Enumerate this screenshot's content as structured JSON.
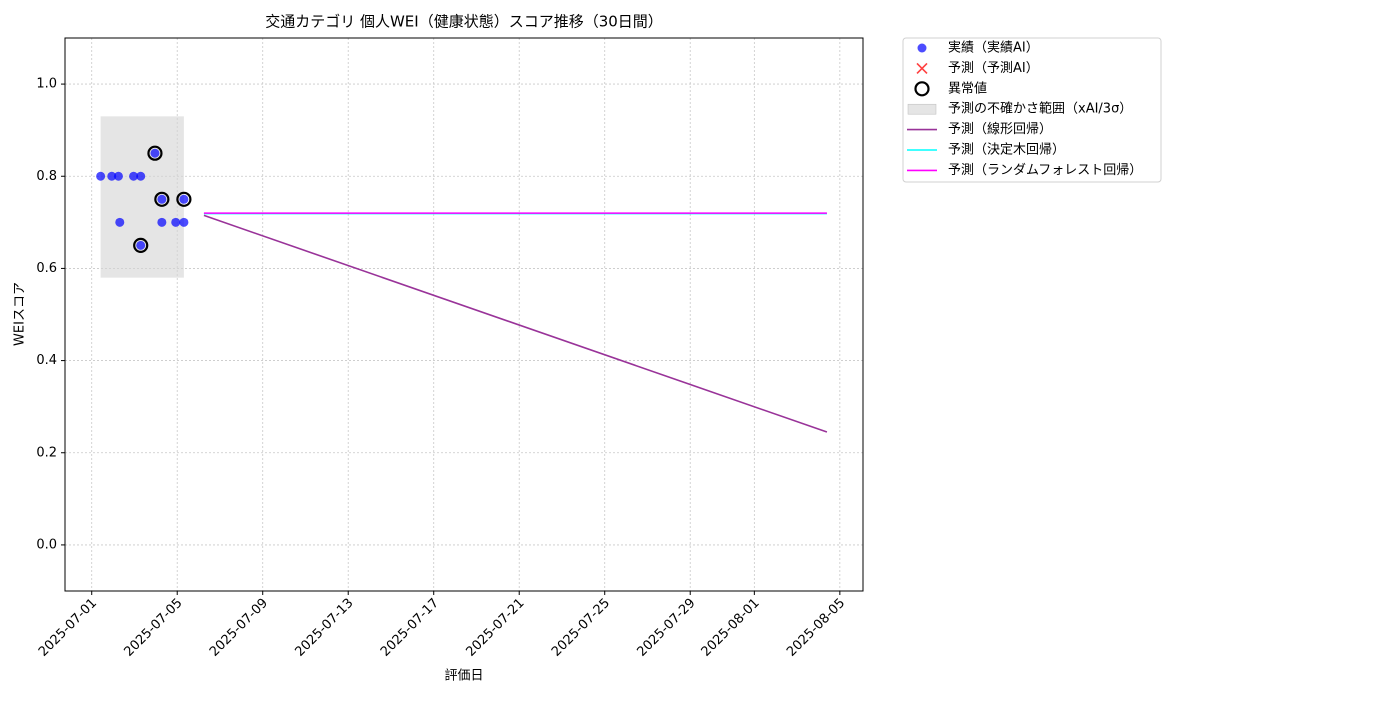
{
  "chart_data": {
    "type": "line",
    "title": "交通カテゴリ 個人WEI（健康状態）スコア推移（30日間）",
    "x_label": "評価日",
    "y_label": "WEIスコア",
    "xlim": [
      "2025-06-29T18:00",
      "2025-08-06T02:00"
    ],
    "xticks": [
      "2025-07-01",
      "2025-07-05",
      "2025-07-09",
      "2025-07-13",
      "2025-07-17",
      "2025-07-21",
      "2025-07-25",
      "2025-07-29",
      "2025-08-01",
      "2025-08-05"
    ],
    "ylim": [
      -0.1,
      1.1
    ],
    "yticks": [
      {
        "value": 0,
        "label": "0.0"
      },
      0.2,
      0.4,
      0.6,
      0.8,
      {
        "value": 1,
        "label": "1.0"
      }
    ],
    "grid": true,
    "legend": "outside upper right",
    "series": [
      {
        "name": "実績（実績AI）",
        "type": "scatter",
        "marker": "o",
        "color": "#0000ff",
        "x": [
          "2025-07-01T10:00",
          "2025-07-01T22:30",
          "2025-07-02T06:00",
          "2025-07-02T07:30",
          "2025-07-02T23:00",
          "2025-07-03T07:00",
          "2025-07-03T07:00",
          "2025-07-03T23:00",
          "2025-07-04T06:45",
          "2025-07-04T06:45",
          "2025-07-04T22:20",
          "2025-07-05T07:30",
          "2025-07-05T07:30"
        ],
        "values": [
          0.8,
          0.8,
          0.8,
          0.7,
          0.8,
          0.8,
          0.65,
          0.85,
          0.75,
          0.7,
          0.7,
          0.75,
          0.7
        ]
      },
      {
        "name": "予測（予測AI）",
        "type": "scatter",
        "marker": "x",
        "color": "#ff0000",
        "x": [],
        "values": []
      },
      {
        "name": "異常値",
        "type": "scatter",
        "marker": "ring",
        "color": "#000000",
        "x": [
          "2025-07-03T07:00",
          "2025-07-03T23:00",
          "2025-07-04T06:45",
          "2025-07-05T07:30"
        ],
        "values": [
          0.65,
          0.85,
          0.75,
          0.75
        ]
      },
      {
        "name": "予測の不確かさ範囲（xAI/3σ）",
        "type": "band",
        "color": "#d3d3d3",
        "x": [
          "2025-07-01T10:00",
          "2025-07-05T07:30"
        ],
        "low": [
          0.58,
          0.58
        ],
        "high": [
          0.93,
          0.93
        ]
      },
      {
        "name": "予測（線形回帰）",
        "type": "line",
        "color": "#993399",
        "x": [
          "2025-07-06T06:00",
          "2025-08-04T09:30"
        ],
        "values": [
          0.715,
          0.245
        ]
      },
      {
        "name": "予測（決定木回帰）",
        "type": "line",
        "color": "#00ffff",
        "x": [
          "2025-07-06T06:00",
          "2025-08-04T09:30"
        ],
        "values": [
          0.719,
          0.719
        ]
      },
      {
        "name": "予測（ランダムフォレスト回帰）",
        "type": "line",
        "color": "#ff00ff",
        "x": [
          "2025-07-06T06:00",
          "2025-08-04T09:30"
        ],
        "values": [
          0.72,
          0.72
        ]
      }
    ]
  }
}
